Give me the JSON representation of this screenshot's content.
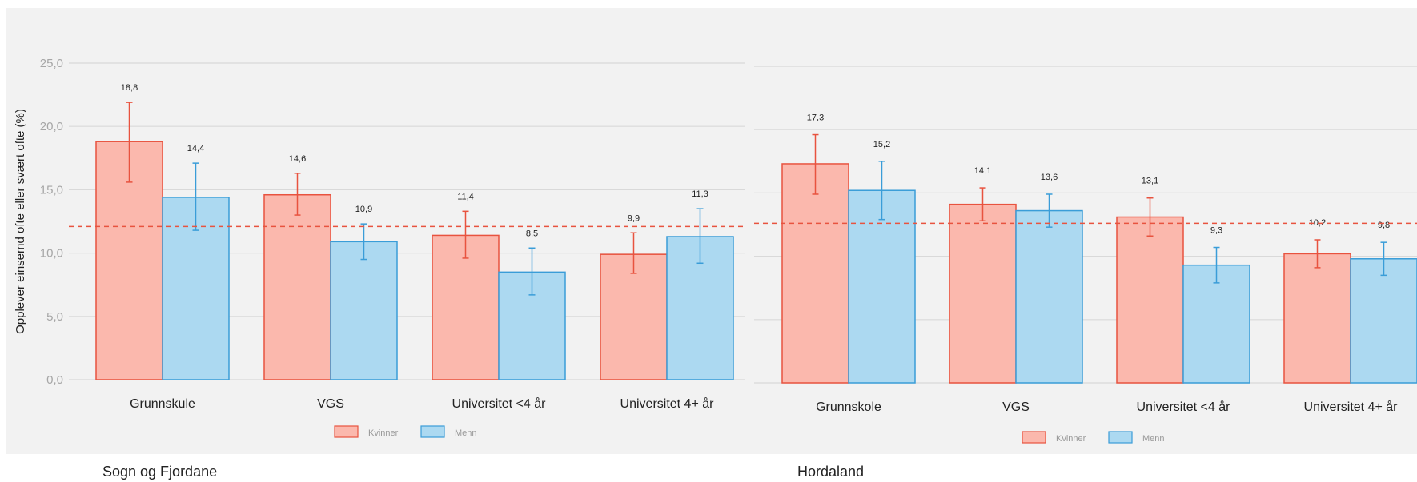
{
  "captions": {
    "left": "Sogn og Fjordane",
    "right": "Hordaland"
  },
  "colors": {
    "kvinner_fill": "#fbb8ad",
    "kvinner_stroke": "#e8533f",
    "menn_fill": "#acd9f1",
    "menn_stroke": "#3a9dd8",
    "reference_line": "#e8533f",
    "panel_bg": "#f2f2f2",
    "grid": "#d9d9d9"
  },
  "chart_data": [
    {
      "type": "bar",
      "panel": "Sogn og Fjordane",
      "ylabel": "Opplever einsemd ofte eller svært ofte (%)",
      "ylim": [
        0,
        25
      ],
      "yticks": [
        "0,0",
        "5,0",
        "10,0",
        "15,0",
        "20,0",
        "25,0"
      ],
      "categories": [
        "Grunnskule",
        "VGS",
        "Universitet <4 år",
        "Universitet 4+ år"
      ],
      "legend": [
        "Kvinner",
        "Menn"
      ],
      "legend_position": "bottom",
      "grid": true,
      "reference_line": 12.1,
      "series": [
        {
          "name": "Kvinner",
          "values": [
            18.8,
            14.6,
            11.4,
            9.9
          ],
          "labels": [
            "18,8",
            "14,6",
            "11,4",
            "9,9"
          ],
          "err_low": [
            15.6,
            13.0,
            9.6,
            8.4
          ],
          "err_high": [
            21.9,
            16.3,
            13.3,
            11.6
          ]
        },
        {
          "name": "Menn",
          "values": [
            14.4,
            10.9,
            8.5,
            11.3
          ],
          "labels": [
            "14,4",
            "10,9",
            "8,5",
            "11,3"
          ],
          "err_low": [
            11.8,
            9.5,
            6.7,
            9.2
          ],
          "err_high": [
            17.1,
            12.3,
            10.4,
            13.5
          ]
        }
      ]
    },
    {
      "type": "bar",
      "panel": "Hordaland",
      "ylim": [
        0,
        25
      ],
      "categories": [
        "Grunnskole",
        "VGS",
        "Universitet <4 år",
        "Universitet 4+ år"
      ],
      "legend": [
        "Kvinner",
        "Menn"
      ],
      "legend_position": "bottom",
      "grid": true,
      "reference_line": 12.6,
      "series": [
        {
          "name": "Kvinner",
          "values": [
            17.3,
            14.1,
            13.1,
            10.2
          ],
          "labels": [
            "17,3",
            "14,1",
            "13,1",
            "10,2"
          ],
          "err_low": [
            14.9,
            12.8,
            11.6,
            9.1
          ],
          "err_high": [
            19.6,
            15.4,
            14.6,
            11.3
          ]
        },
        {
          "name": "Menn",
          "values": [
            15.2,
            13.6,
            9.3,
            9.8
          ],
          "labels": [
            "15,2",
            "13,6",
            "9,3",
            "9,8"
          ],
          "err_low": [
            12.9,
            12.3,
            7.9,
            8.5
          ],
          "err_high": [
            17.5,
            14.9,
            10.7,
            11.1
          ]
        }
      ]
    }
  ]
}
